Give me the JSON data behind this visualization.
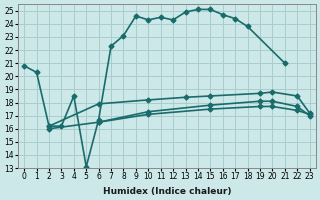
{
  "xlabel": "Humidex (Indice chaleur)",
  "bg_color": "#cce8e8",
  "grid_color": "#aacccc",
  "line_color": "#1a6b6b",
  "xlim": [
    -0.5,
    23.5
  ],
  "ylim": [
    13,
    25.5
  ],
  "yticks": [
    13,
    14,
    15,
    16,
    17,
    18,
    19,
    20,
    21,
    22,
    23,
    24,
    25
  ],
  "xticks": [
    0,
    1,
    2,
    3,
    4,
    5,
    6,
    7,
    8,
    9,
    10,
    11,
    12,
    13,
    14,
    15,
    16,
    17,
    18,
    19,
    20,
    21,
    22,
    23
  ],
  "line_a_x": [
    0,
    1,
    2,
    3,
    4,
    5,
    6,
    7,
    8,
    9,
    10,
    11,
    12,
    13,
    14,
    15,
    16,
    17,
    18,
    21
  ],
  "line_a_y": [
    20.8,
    20.3,
    16.2,
    16.2,
    18.5,
    13.1,
    16.7,
    22.3,
    23.1,
    24.6,
    24.3,
    24.5,
    24.3,
    24.9,
    25.1,
    25.1,
    24.7,
    24.4,
    23.8,
    21.0
  ],
  "line_b_x": [
    2,
    6,
    10,
    13,
    15,
    19,
    20,
    22,
    23
  ],
  "line_b_y": [
    16.2,
    17.9,
    18.2,
    18.4,
    18.5,
    18.7,
    18.8,
    18.5,
    17.2
  ],
  "line_c_x": [
    2,
    6,
    10,
    15,
    19,
    20,
    22,
    23
  ],
  "line_c_y": [
    16.0,
    16.5,
    17.1,
    17.5,
    17.7,
    17.7,
    17.4,
    17.1
  ],
  "line_d_x": [
    6,
    10,
    15,
    19,
    20,
    22,
    23
  ],
  "line_d_y": [
    16.5,
    17.3,
    17.8,
    18.1,
    18.1,
    17.7,
    17.0
  ]
}
